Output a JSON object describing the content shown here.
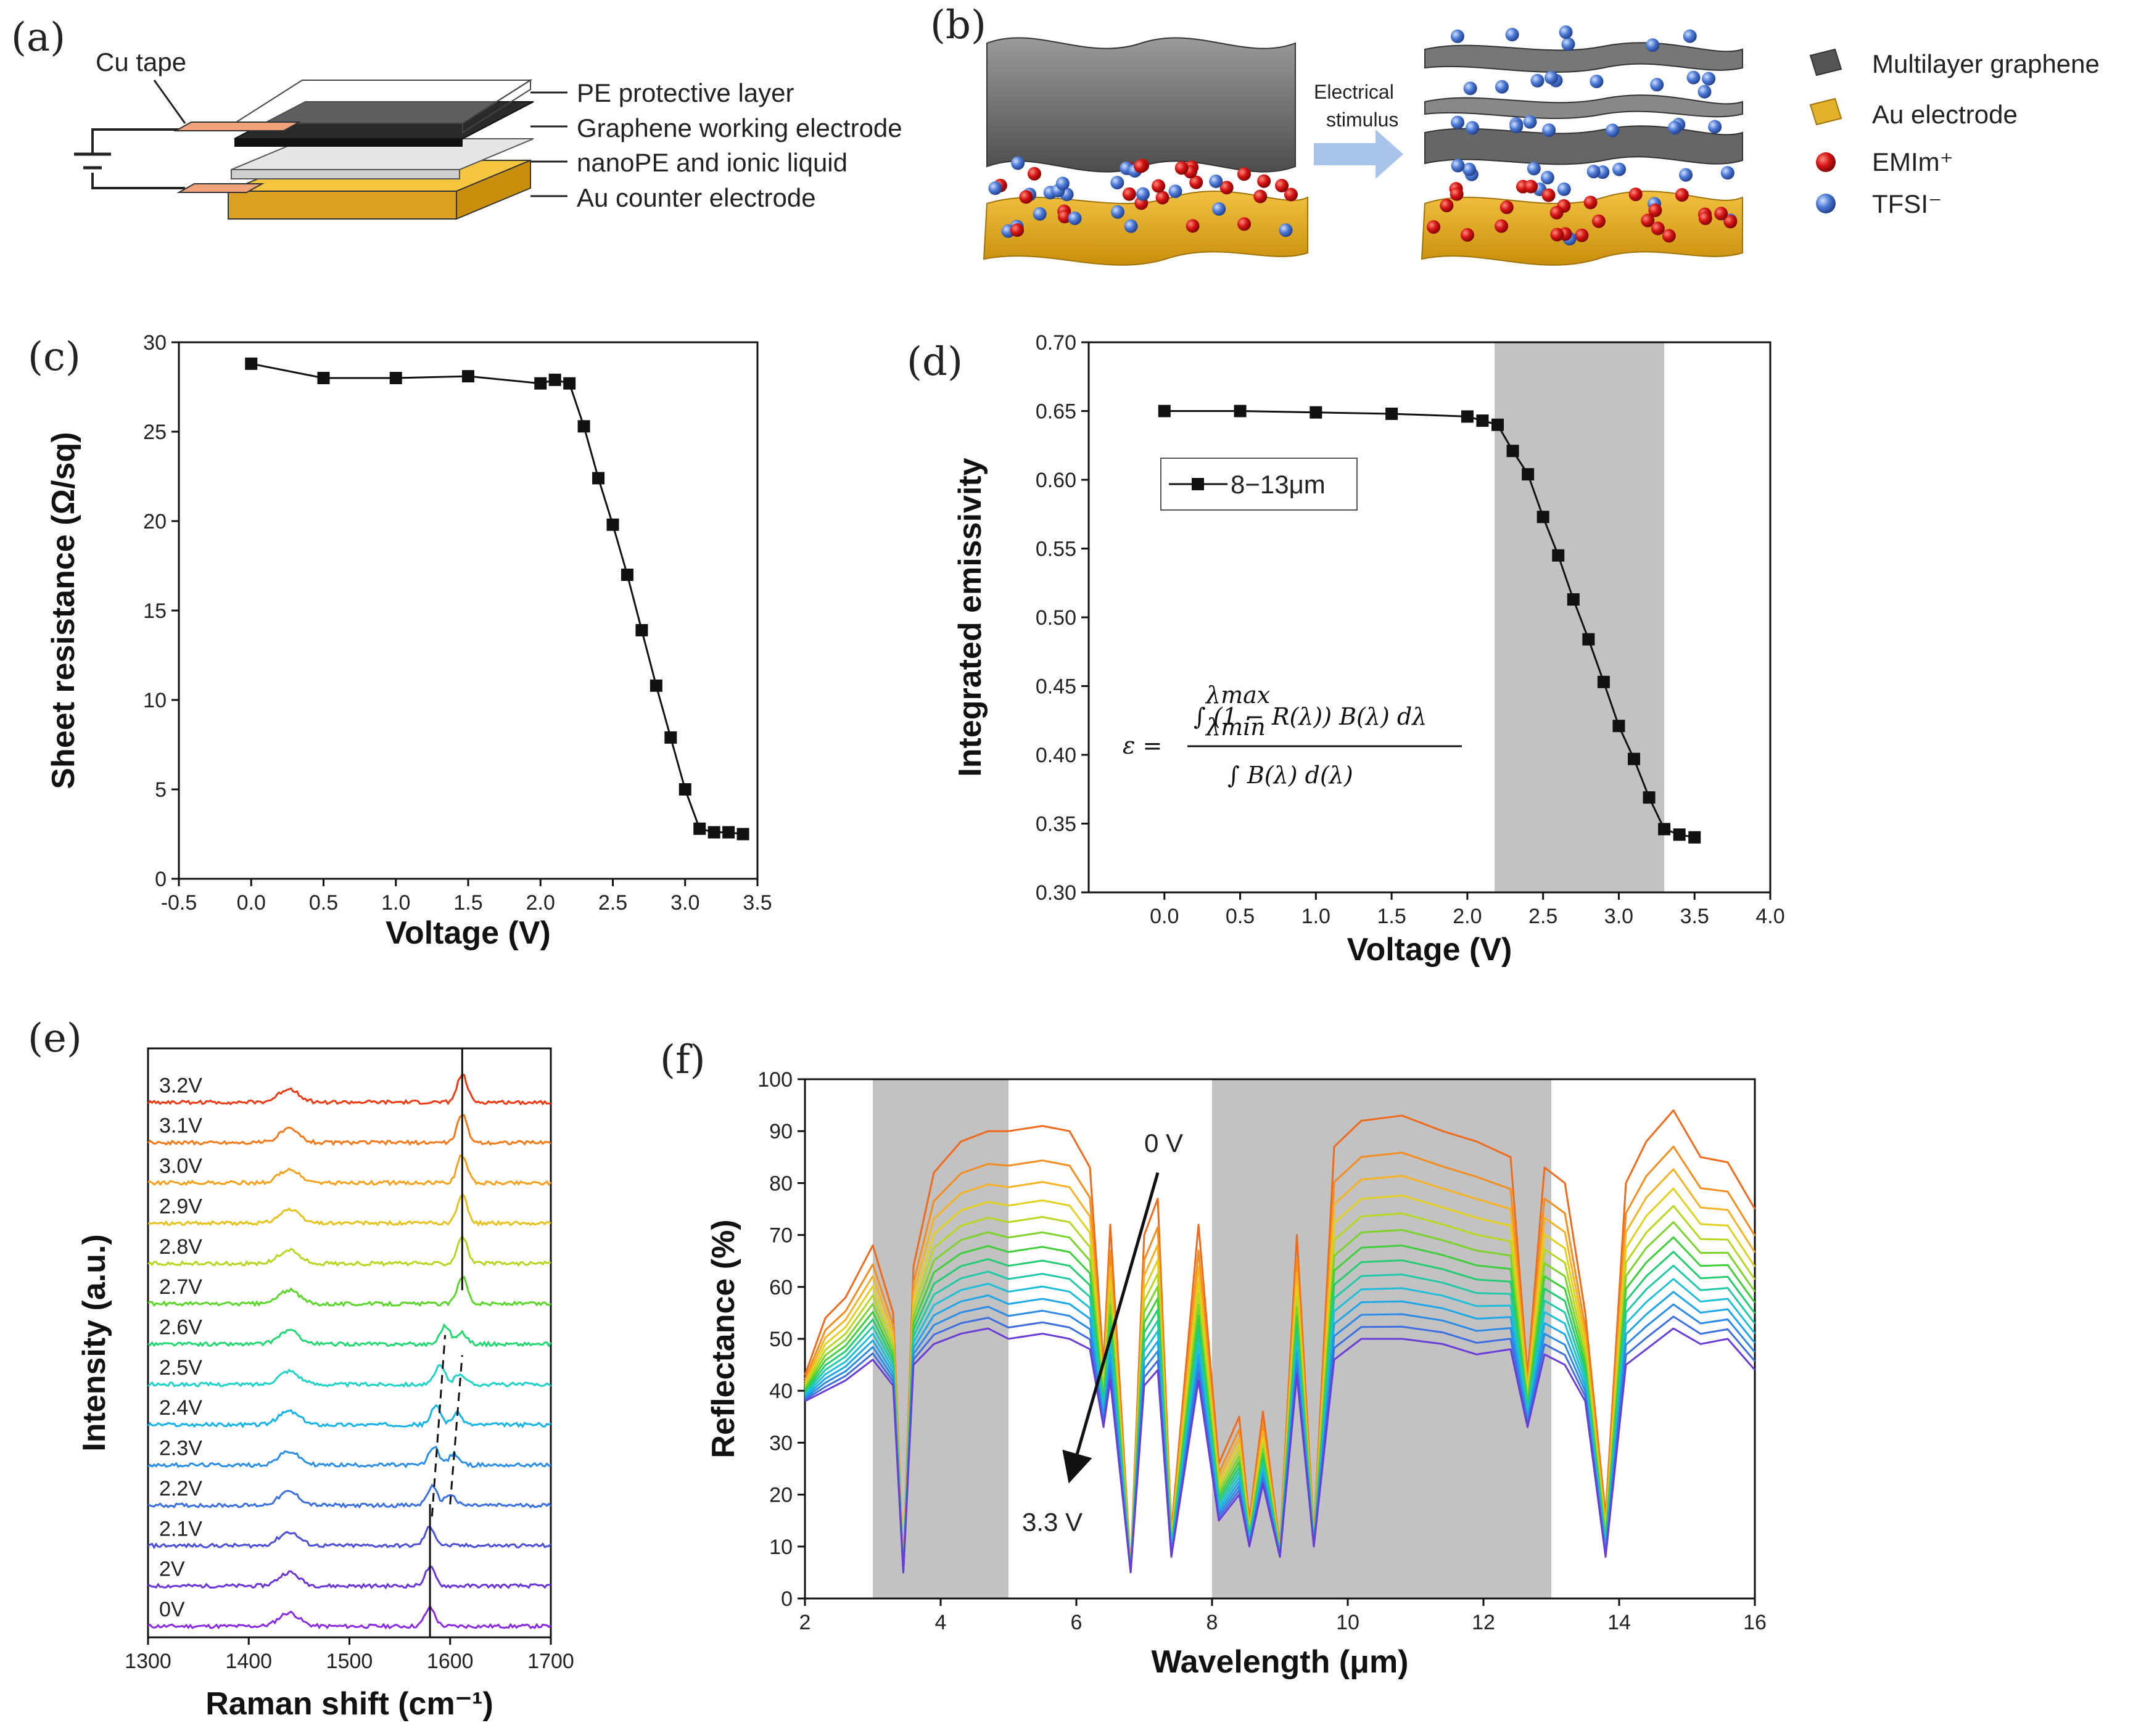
{
  "panels": {
    "a": {
      "label": "(a)",
      "cu_tape": "Cu tape",
      "layers": [
        "PE protective layer",
        "Graphene working electrode",
        "nanoPE and ionic liquid",
        "Au counter electrode"
      ]
    },
    "b": {
      "label": "(b)",
      "arrow_text": [
        "Electrical",
        "stimulus"
      ],
      "legend": [
        "Multilayer graphene",
        "Au electrode",
        "EMIm⁺",
        "TFSI⁻"
      ]
    },
    "c": {
      "label": "(c)"
    },
    "d": {
      "label": "(d)",
      "legend": "8−13μm"
    },
    "e": {
      "label": "(e)"
    },
    "f": {
      "label": "(f)",
      "arrow_start": "0 V",
      "arrow_end": "3.3 V"
    }
  },
  "chart_data": [
    {
      "id": "c",
      "type": "line",
      "xlabel": "Voltage (V)",
      "ylabel": "Sheet resistance (Ω/sq)",
      "xlim": [
        -0.5,
        3.5
      ],
      "ylim": [
        0,
        30
      ],
      "xticks": [
        -0.5,
        0.0,
        0.5,
        1.0,
        1.5,
        2.0,
        2.5,
        3.0,
        3.5
      ],
      "yticks": [
        0,
        5,
        10,
        15,
        20,
        25,
        30
      ],
      "x": [
        0.0,
        0.5,
        1.0,
        1.5,
        2.0,
        2.1,
        2.2,
        2.3,
        2.4,
        2.5,
        2.6,
        2.7,
        2.8,
        2.9,
        3.0,
        3.1,
        3.2,
        3.3,
        3.4
      ],
      "y": [
        28.8,
        28.0,
        28.0,
        28.1,
        27.7,
        27.9,
        27.7,
        25.3,
        22.4,
        19.8,
        17.0,
        13.9,
        10.8,
        7.9,
        5.0,
        2.8,
        2.6,
        2.6,
        2.5
      ]
    },
    {
      "id": "d",
      "type": "line",
      "xlabel": "Voltage (V)",
      "ylabel": "Integrated emissivity",
      "xlim": [
        -0.5,
        4.0
      ],
      "ylim": [
        0.3,
        0.7
      ],
      "xticks": [
        0.0,
        0.5,
        1.0,
        1.5,
        2.0,
        2.5,
        3.0,
        3.5,
        4.0
      ],
      "yticks": [
        0.3,
        0.35,
        0.4,
        0.45,
        0.5,
        0.55,
        0.6,
        0.65,
        0.7
      ],
      "shaded_range": [
        2.18,
        3.3
      ],
      "series_name": "8−13μm",
      "x": [
        0.0,
        0.5,
        1.0,
        1.5,
        2.0,
        2.1,
        2.2,
        2.3,
        2.4,
        2.5,
        2.6,
        2.7,
        2.8,
        2.9,
        3.0,
        3.1,
        3.2,
        3.3,
        3.4,
        3.5
      ],
      "y": [
        0.65,
        0.65,
        0.649,
        0.648,
        0.646,
        0.643,
        0.64,
        0.621,
        0.604,
        0.573,
        0.545,
        0.513,
        0.484,
        0.453,
        0.421,
        0.397,
        0.369,
        0.346,
        0.342,
        0.34
      ],
      "equation": {
        "lhs": "ε =",
        "numerator": "∫ (1 − R(λ)) B(λ) dλ",
        "denominator": "∫ B(λ) d(λ)",
        "lower": "λmin",
        "upper": "λmax"
      }
    },
    {
      "id": "e",
      "type": "line",
      "xlabel": "Raman shift (cm⁻¹)",
      "ylabel": "Intensity (a.u.)",
      "xlim": [
        1300,
        1700
      ],
      "xticks": [
        1300,
        1400,
        1500,
        1600,
        1700
      ],
      "series_labels": [
        "0V",
        "2V",
        "2.1V",
        "2.2V",
        "2.3V",
        "2.4V",
        "2.5V",
        "2.6V",
        "2.7V",
        "2.8V",
        "2.9V",
        "3.0V",
        "3.1V",
        "3.2V"
      ],
      "peak1_cm": [
        1580,
        1580,
        1580,
        1582,
        1584,
        1586,
        1590,
        1595,
        1612,
        1612,
        1612,
        1612,
        1612,
        1612
      ],
      "peak2_cm": [
        0,
        0,
        0,
        1600,
        1604,
        1607,
        1610,
        1612,
        0,
        0,
        0,
        0,
        0,
        0
      ],
      "colors": [
        "#8a2be2",
        "#6a34d8",
        "#4b4fd6",
        "#3a6fe0",
        "#2a8fe4",
        "#14b4e8",
        "#1dd3c8",
        "#22d873",
        "#5bd62a",
        "#b6d620",
        "#e6c21c",
        "#f4a21c",
        "#f27a1a",
        "#ee3a14"
      ]
    },
    {
      "id": "f",
      "type": "line",
      "xlabel": "Wavelength (μm)",
      "ylabel": "Reflectance (%)",
      "xlim": [
        2,
        16
      ],
      "ylim": [
        0,
        100
      ],
      "xticks": [
        2,
        4,
        6,
        8,
        10,
        12,
        14,
        16
      ],
      "yticks": [
        0,
        10,
        20,
        30,
        40,
        50,
        60,
        70,
        80,
        90,
        100
      ],
      "shaded_ranges": [
        [
          3,
          5
        ],
        [
          8,
          13
        ]
      ],
      "x": [
        2.0,
        2.3,
        2.6,
        3.0,
        3.3,
        3.45,
        3.6,
        3.9,
        4.3,
        4.7,
        5.0,
        5.5,
        5.9,
        6.2,
        6.4,
        6.5,
        6.8,
        7.0,
        7.2,
        7.4,
        7.8,
        8.1,
        8.4,
        8.55,
        8.75,
        9.0,
        9.25,
        9.5,
        9.8,
        10.2,
        10.8,
        11.4,
        11.9,
        12.4,
        12.65,
        12.9,
        13.2,
        13.5,
        13.8,
        14.1,
        14.4,
        14.8,
        15.2,
        15.6,
        16.0
      ],
      "series": [
        {
          "name": "0 V",
          "values": [
            43,
            54,
            58,
            68,
            55,
            6,
            64,
            82,
            88,
            90,
            90,
            91,
            90,
            83,
            45,
            72,
            6,
            70,
            77,
            13,
            72,
            26,
            35,
            15,
            36,
            10,
            70,
            12,
            87,
            92,
            93,
            90,
            88,
            85,
            43,
            83,
            80,
            55,
            16,
            80,
            88,
            94,
            85,
            84,
            75
          ]
        },
        {
          "name": "3.3 V",
          "values": [
            38,
            40,
            42,
            46,
            41,
            5,
            45,
            49,
            51,
            52,
            50,
            51,
            50,
            48,
            33,
            42,
            5,
            41,
            44,
            8,
            42,
            15,
            20,
            10,
            22,
            8,
            43,
            10,
            46,
            50,
            50,
            49,
            47,
            48,
            33,
            47,
            45,
            38,
            8,
            45,
            48,
            52,
            49,
            50,
            44
          ]
        }
      ],
      "curve_count": 14,
      "colors": [
        "#ef6a1a",
        "#f48c1e",
        "#f6b220",
        "#e3d01c",
        "#b6d820",
        "#7cd42a",
        "#3ecf3a",
        "#22cc70",
        "#1fc9a8",
        "#1dbfd8",
        "#1da6e8",
        "#2a8ae6",
        "#3d6ee0",
        "#6a3cd8"
      ]
    }
  ]
}
